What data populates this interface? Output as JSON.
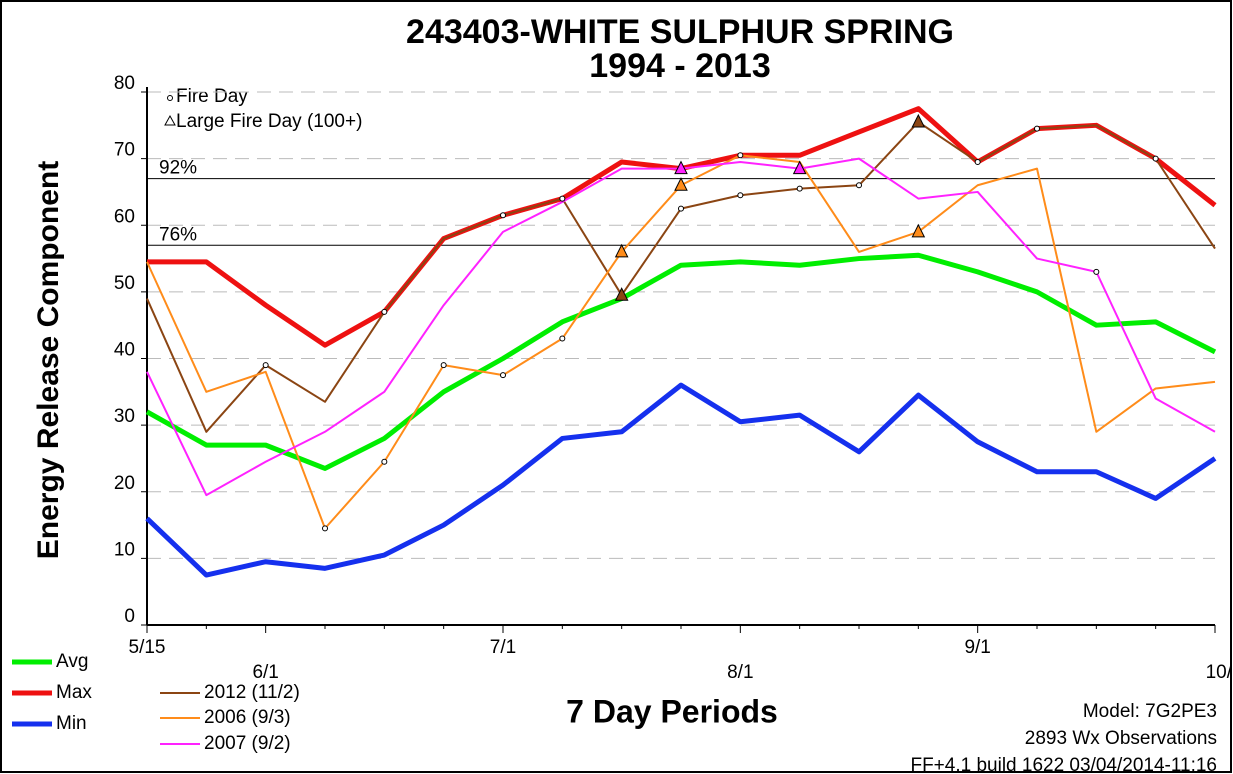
{
  "chart_data": {
    "type": "line",
    "title": "243403-WHITE SULPHUR SPRING",
    "subtitle": "1994 - 2013",
    "x_label": "7 Day Periods",
    "y_label": "Energy Release Component",
    "categories": [
      "5/15",
      null,
      "6/1",
      null,
      null,
      null,
      "7/1",
      null,
      null,
      null,
      "8/1",
      null,
      null,
      null,
      "9/1",
      null,
      null,
      null,
      "10/"
    ],
    "ylim": [
      0,
      80
    ],
    "yticks": [
      0,
      10,
      20,
      30,
      40,
      50,
      60,
      70,
      80
    ],
    "grid": true,
    "reference_lines": [
      {
        "label": "92%",
        "value": 67
      },
      {
        "label": "76%",
        "value": 57
      }
    ],
    "marker_legend": {
      "fire_day": "Fire Day",
      "large_fire_day": "Large Fire Day (100+)"
    },
    "series": [
      {
        "name": "Avg",
        "color": "#00ee00",
        "width": 5,
        "values": [
          32,
          27,
          27,
          23.5,
          28,
          35,
          40,
          45.5,
          49,
          54,
          54.5,
          54,
          55,
          55.5,
          53,
          50,
          45,
          45.5,
          41
        ]
      },
      {
        "name": "Max",
        "color": "#ee1111",
        "width": 5,
        "values": [
          54.5,
          54.5,
          48,
          42,
          47,
          58,
          61.5,
          64,
          69.5,
          68.5,
          70.5,
          70.5,
          74,
          77.5,
          69.5,
          74.5,
          75,
          70,
          63
        ]
      },
      {
        "name": "Min",
        "color": "#1530ee",
        "width": 5,
        "values": [
          16,
          7.5,
          9.5,
          8.5,
          10.5,
          15,
          21,
          28,
          29,
          36,
          30.5,
          31.5,
          26,
          34.5,
          27.5,
          23,
          23,
          19,
          25
        ]
      },
      {
        "name": "2012 (11/2)",
        "color": "#8b4513",
        "width": 2,
        "values": [
          49,
          29,
          39,
          33.5,
          47,
          58,
          61.5,
          64,
          49.5,
          62.5,
          64.5,
          65.5,
          66,
          75.5,
          69.5,
          74.5,
          75,
          70,
          56.5
        ],
        "fire_day_points": [
          2,
          4,
          6,
          7,
          9,
          10,
          11,
          12,
          14,
          15,
          17
        ],
        "large_fire_points": [
          8,
          13
        ]
      },
      {
        "name": "2006 (9/3)",
        "color": "#ff8c1a",
        "width": 2,
        "values": [
          54.5,
          35,
          38,
          14.5,
          24.5,
          39,
          37.5,
          43,
          56,
          66,
          70.5,
          69.5,
          56,
          59,
          66,
          68.5,
          29,
          35.5,
          36.5
        ],
        "fire_day_points": [
          3,
          4,
          5,
          6,
          7,
          10
        ],
        "large_fire_points": [
          8,
          9,
          13
        ]
      },
      {
        "name": "2007 (9/2)",
        "color": "#ff22ff",
        "width": 2,
        "values": [
          38,
          19.5,
          24.5,
          29,
          35,
          48,
          59,
          63.5,
          68.5,
          68.5,
          69.5,
          68.5,
          70,
          64,
          65,
          55,
          53,
          34,
          29
        ],
        "fire_day_points": [
          16
        ],
        "large_fire_points": [
          9,
          11
        ]
      }
    ],
    "footer": [
      "Model: 7G2PE3",
      "2893 Wx Observations",
      "FF+4.1 build 1622 03/04/2014-11:16"
    ]
  }
}
